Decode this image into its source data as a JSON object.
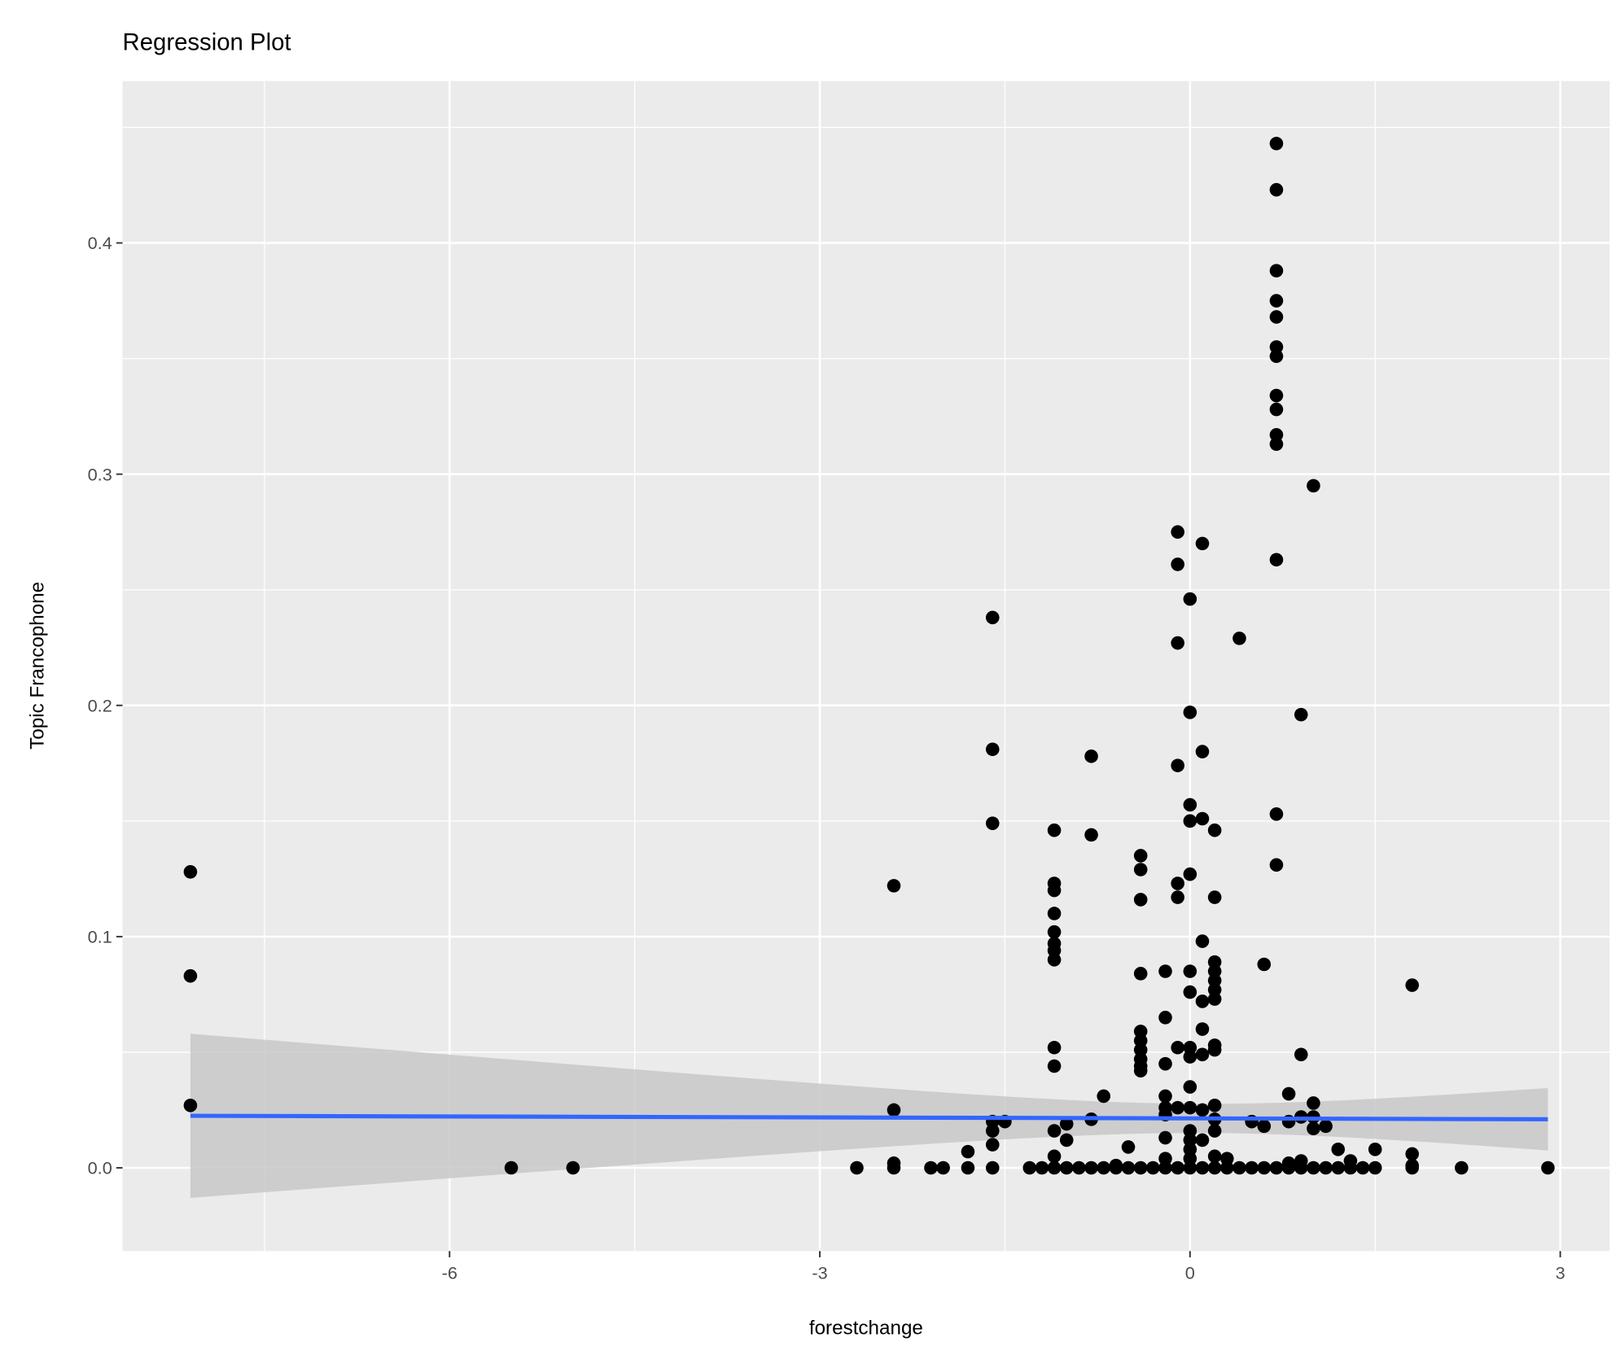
{
  "chart_data": {
    "type": "scatter",
    "title": "Regression Plot",
    "xlabel": "forestchange",
    "ylabel": "Topic Francophone",
    "xlim": [
      -8.65,
      3.4
    ],
    "ylim": [
      -0.036,
      0.47
    ],
    "x_ticks": [
      -6,
      -3,
      0,
      3
    ],
    "x_tick_labels": [
      "-6",
      "-3",
      "0",
      "3"
    ],
    "y_ticks": [
      0.0,
      0.1,
      0.2,
      0.3,
      0.4
    ],
    "y_tick_labels": [
      "0.0",
      "0.1",
      "0.2",
      "0.3",
      "0.4"
    ],
    "grid": true,
    "legend": "none",
    "colors": {
      "points": "#000000",
      "fit_line": "#3366FF",
      "ribbon": "#C8C8C8",
      "panel": "#EBEBEB"
    },
    "points_by_x": [
      {
        "x": -8.1,
        "y": [
          0.128,
          0.083,
          0.027
        ]
      },
      {
        "x": -5.5,
        "y": [
          0
        ]
      },
      {
        "x": -5.0,
        "y": [
          0
        ]
      },
      {
        "x": -2.7,
        "y": [
          0
        ]
      },
      {
        "x": -2.4,
        "y": [
          0.122,
          0.025,
          0.002,
          0
        ]
      },
      {
        "x": -2.1,
        "y": [
          0
        ]
      },
      {
        "x": -2.0,
        "y": [
          0
        ]
      },
      {
        "x": -1.8,
        "y": [
          0.007,
          0
        ]
      },
      {
        "x": -1.6,
        "y": [
          0.238,
          0.181,
          0.149,
          0.02,
          0.016,
          0.01,
          0
        ]
      },
      {
        "x": -1.5,
        "y": [
          0.02
        ]
      },
      {
        "x": -1.3,
        "y": [
          0
        ]
      },
      {
        "x": -1.2,
        "y": [
          0
        ]
      },
      {
        "x": -1.1,
        "y": [
          0.146,
          0.123,
          0.12,
          0.11,
          0.102,
          0.097,
          0.094,
          0.09,
          0.052,
          0.044,
          0.016,
          0.005,
          0
        ]
      },
      {
        "x": -1.0,
        "y": [
          0.019,
          0.012,
          0
        ]
      },
      {
        "x": -0.9,
        "y": [
          0
        ]
      },
      {
        "x": -0.8,
        "y": [
          0.178,
          0.144,
          0.021,
          0
        ]
      },
      {
        "x": -0.7,
        "y": [
          0.031,
          0
        ]
      },
      {
        "x": -0.6,
        "y": [
          0.001,
          0
        ]
      },
      {
        "x": -0.5,
        "y": [
          0.009,
          0
        ]
      },
      {
        "x": -0.4,
        "y": [
          0.135,
          0.129,
          0.116,
          0.084,
          0.059,
          0.055,
          0.051,
          0.047,
          0.044,
          0.042,
          0
        ]
      },
      {
        "x": -0.3,
        "y": [
          0
        ]
      },
      {
        "x": -0.2,
        "y": [
          0.085,
          0.065,
          0.045,
          0.031,
          0.026,
          0.023,
          0.013,
          0.004,
          0
        ]
      },
      {
        "x": -0.1,
        "y": [
          0.275,
          0.261,
          0.227,
          0.174,
          0.123,
          0.117,
          0.052,
          0.026,
          0
        ]
      },
      {
        "x": 0.0,
        "y": [
          0.246,
          0.197,
          0.157,
          0.15,
          0.127,
          0.085,
          0.076,
          0.052,
          0.048,
          0.035,
          0.026,
          0.016,
          0.012,
          0.008,
          0.004,
          0
        ]
      },
      {
        "x": 0.1,
        "y": [
          0.27,
          0.18,
          0.151,
          0.098,
          0.072,
          0.06,
          0.049,
          0.025,
          0.012,
          0
        ]
      },
      {
        "x": 0.2,
        "y": [
          0.146,
          0.117,
          0.089,
          0.085,
          0.081,
          0.077,
          0.073,
          0.053,
          0.051,
          0.027,
          0.021,
          0.016,
          0.005,
          0
        ]
      },
      {
        "x": 0.3,
        "y": [
          0.004,
          0
        ]
      },
      {
        "x": 0.4,
        "y": [
          0.229,
          0
        ]
      },
      {
        "x": 0.5,
        "y": [
          0.02,
          0
        ]
      },
      {
        "x": 0.6,
        "y": [
          0.088,
          0.018,
          0
        ]
      },
      {
        "x": 0.7,
        "y": [
          0.443,
          0.423,
          0.388,
          0.375,
          0.368,
          0.355,
          0.351,
          0.334,
          0.328,
          0.317,
          0.313,
          0.263,
          0.153,
          0.131,
          0
        ]
      },
      {
        "x": 0.8,
        "y": [
          0.032,
          0.02,
          0.002,
          0
        ]
      },
      {
        "x": 0.9,
        "y": [
          0.196,
          0.049,
          0.022,
          0.003,
          0
        ]
      },
      {
        "x": 1.0,
        "y": [
          0.295,
          0.028,
          0.022,
          0.017,
          0
        ]
      },
      {
        "x": 1.1,
        "y": [
          0.018,
          0
        ]
      },
      {
        "x": 1.2,
        "y": [
          0.008,
          0
        ]
      },
      {
        "x": 1.3,
        "y": [
          0.003,
          0
        ]
      },
      {
        "x": 1.4,
        "y": [
          0
        ]
      },
      {
        "x": 1.5,
        "y": [
          0.008,
          0
        ]
      },
      {
        "x": 1.8,
        "y": [
          0.079,
          0.006,
          0.001,
          0
        ]
      },
      {
        "x": 2.2,
        "y": [
          0
        ]
      },
      {
        "x": 2.9,
        "y": [
          0
        ]
      }
    ],
    "fit": {
      "x_range": [
        -8.1,
        2.9
      ],
      "y_at_ends": [
        0.0225,
        0.021
      ],
      "ci_lower_at_ends": [
        -0.013,
        0.008
      ],
      "ci_upper_at_ends": [
        0.058,
        0.035
      ],
      "ci_min_halfwidth": 0.0063,
      "ci_center_x": 0.1
    }
  }
}
